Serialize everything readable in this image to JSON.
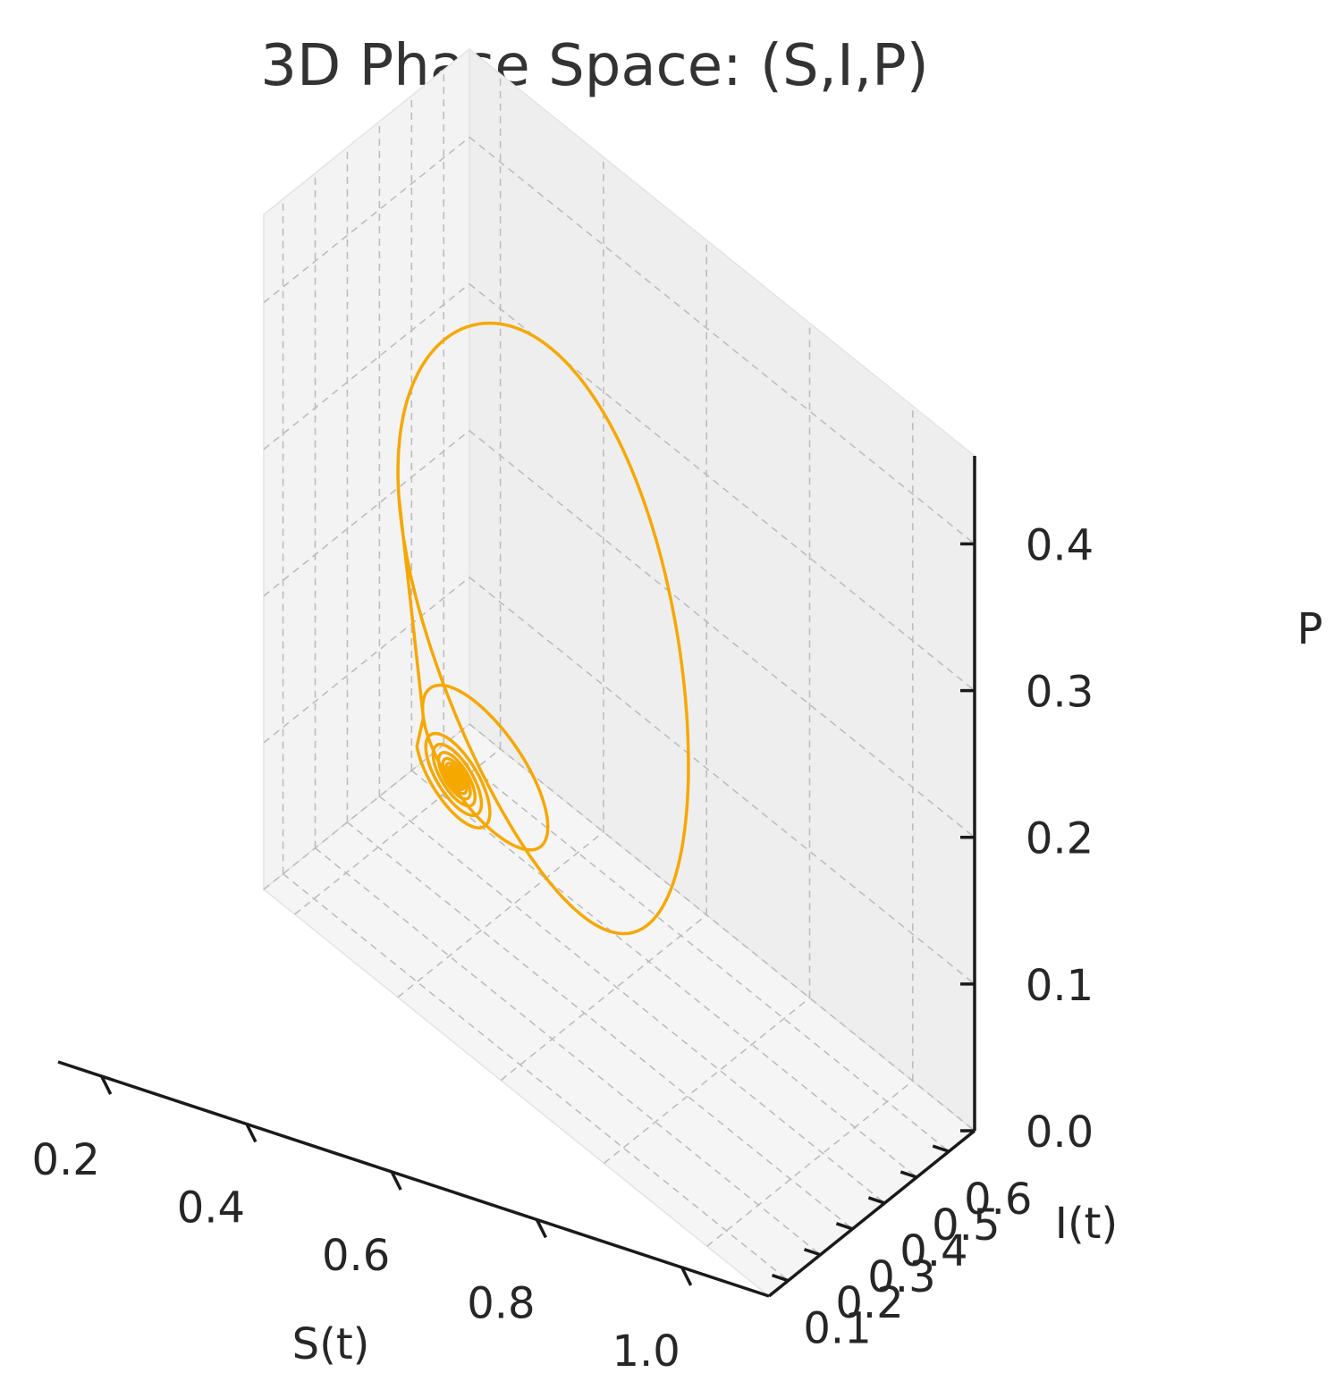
{
  "chart_data": {
    "type": "line",
    "projection": "3d",
    "title": "3D Phase Space: (S,I,P)",
    "axes": {
      "x": {
        "label": "S(t)",
        "ticks": [
          "0.2",
          "0.4",
          "0.6",
          "0.8",
          "1.0"
        ],
        "tick_values": [
          0.2,
          0.4,
          0.6,
          0.8,
          1.0
        ],
        "range": [
          0.14,
          1.12
        ]
      },
      "y": {
        "label": "I(t)",
        "ticks": [
          "0.1",
          "0.2",
          "0.3",
          "0.4",
          "0.5",
          "0.6"
        ],
        "tick_values": [
          0.1,
          0.2,
          0.3,
          0.4,
          0.5,
          0.6
        ],
        "range": [
          0.04,
          0.68
        ]
      },
      "z": {
        "label": "P",
        "ticks": [
          "0.0",
          "0.1",
          "0.2",
          "0.3",
          "0.4"
        ],
        "tick_values": [
          0.0,
          0.1,
          0.2,
          0.3,
          0.4
        ],
        "range": [
          0.0,
          0.46
        ]
      }
    },
    "grid": true,
    "series": [
      {
        "color": "#f5a800",
        "description": "trajectory: one large loop, one smaller loop, then a spiral converging to a fixed point",
        "equilibrium": {
          "S": 0.35,
          "I": 0.3,
          "P": 0.09
        },
        "big_loop": {
          "S_center": 0.52,
          "P_center": 0.25,
          "S_radius": 0.28,
          "P_radius": 0.2
        },
        "small_loop": {
          "S_center": 0.42,
          "P_center": 0.12,
          "S_radius": 0.12,
          "P_radius": 0.05
        }
      }
    ]
  }
}
